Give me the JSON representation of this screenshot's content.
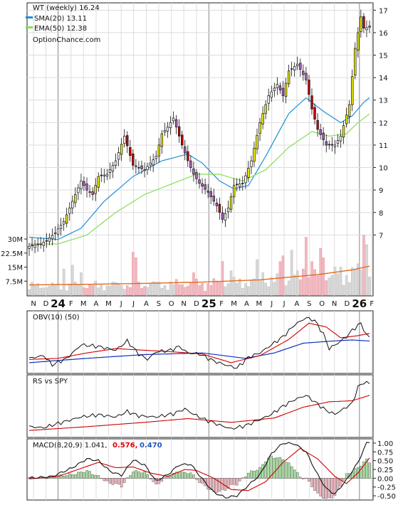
{
  "chart_data": [
    {
      "type": "candlestick",
      "panel": "price",
      "title": "WT (weekly) 16.24",
      "watermark": "OptionChance.com",
      "legend": [
        {
          "label": "SMA(20) 13.11",
          "color": "#1e90d8"
        },
        {
          "label": "EMA(50) 12.38",
          "color": "#88dd55"
        }
      ],
      "y_ticks": [
        7,
        8,
        9,
        10,
        11,
        12,
        13,
        14,
        15,
        16,
        17
      ],
      "ylim": [
        6.6,
        17.2
      ],
      "grid": true,
      "x_ticks": [
        {
          "label": "N",
          "w": 1.5
        },
        {
          "label": "D",
          "w": 5.8
        },
        {
          "label": "24",
          "w": 10,
          "year": true
        },
        {
          "label": "F",
          "w": 14.5
        },
        {
          "label": "M",
          "w": 18.8
        },
        {
          "label": "A",
          "w": 23.2
        },
        {
          "label": "M",
          "w": 27.5
        },
        {
          "label": "J",
          "w": 31.9
        },
        {
          "label": "J",
          "w": 36.2
        },
        {
          "label": "A",
          "w": 40.6
        },
        {
          "label": "S",
          "w": 44.9
        },
        {
          "label": "O",
          "w": 49.3
        },
        {
          "label": "N",
          "w": 53.6
        },
        {
          "label": "D",
          "w": 58
        },
        {
          "label": "25",
          "w": 62.3,
          "year": true
        },
        {
          "label": "F",
          "w": 66.7
        },
        {
          "label": "M",
          "w": 71
        },
        {
          "label": "A",
          "w": 75.4
        },
        {
          "label": "M",
          "w": 79.7
        },
        {
          "label": "J",
          "w": 84.1
        },
        {
          "label": "J",
          "w": 88.4
        },
        {
          "label": "A",
          "w": 92.8
        },
        {
          "label": "S",
          "w": 97.1
        },
        {
          "label": "O",
          "w": 101.5
        },
        {
          "label": "N",
          "w": 105.8
        },
        {
          "label": "D",
          "w": 110.2
        },
        {
          "label": "26",
          "w": 114.5,
          "year": true
        },
        {
          "label": "F",
          "w": 118.8
        }
      ],
      "close_keypoints": [
        [
          0,
          6.5
        ],
        [
          4,
          6.6
        ],
        [
          6,
          6.75
        ],
        [
          9,
          7.1
        ],
        [
          12,
          7.6
        ],
        [
          15,
          8.5
        ],
        [
          18,
          9.4
        ],
        [
          20,
          9.0
        ],
        [
          22,
          8.8
        ],
        [
          24,
          9.6
        ],
        [
          27,
          9.7
        ],
        [
          30,
          10.3
        ],
        [
          33,
          11.4
        ],
        [
          36,
          10.1
        ],
        [
          38,
          10.0
        ],
        [
          40,
          9.9
        ],
        [
          42,
          10.2
        ],
        [
          44,
          10.5
        ],
        [
          46,
          11.5
        ],
        [
          48,
          11.8
        ],
        [
          50,
          12.2
        ],
        [
          53,
          11.0
        ],
        [
          55,
          10.3
        ],
        [
          57,
          9.7
        ],
        [
          59,
          9.3
        ],
        [
          62,
          8.9
        ],
        [
          65,
          8.3
        ],
        [
          67,
          7.7
        ],
        [
          69,
          8.2
        ],
        [
          71,
          9.2
        ],
        [
          74,
          9.3
        ],
        [
          77,
          10.3
        ],
        [
          80,
          12.0
        ],
        [
          83,
          13.2
        ],
        [
          86,
          13.7
        ],
        [
          88,
          13.2
        ],
        [
          90,
          14.3
        ],
        [
          93,
          14.6
        ],
        [
          96,
          13.9
        ],
        [
          98,
          12.6
        ],
        [
          100,
          11.7
        ],
        [
          103,
          11.0
        ],
        [
          106,
          11.0
        ],
        [
          108,
          11.4
        ],
        [
          111,
          12.8
        ],
        [
          113,
          15.3
        ],
        [
          115,
          16.7
        ],
        [
          116,
          16.2
        ],
        [
          118,
          16.24
        ]
      ],
      "sma_keypoints": [
        [
          0,
          6.9
        ],
        [
          10,
          6.8
        ],
        [
          18,
          7.3
        ],
        [
          26,
          8.5
        ],
        [
          36,
          9.6
        ],
        [
          46,
          10.3
        ],
        [
          55,
          10.6
        ],
        [
          60,
          10.2
        ],
        [
          66,
          9.4
        ],
        [
          71,
          9.05
        ],
        [
          76,
          9.2
        ],
        [
          82,
          10.5
        ],
        [
          90,
          12.4
        ],
        [
          96,
          13.1
        ],
        [
          102,
          12.5
        ],
        [
          108,
          12.0
        ],
        [
          112,
          12.3
        ],
        [
          116,
          12.9
        ],
        [
          118,
          13.11
        ]
      ],
      "ema_keypoints": [
        [
          0,
          6.6
        ],
        [
          10,
          6.6
        ],
        [
          20,
          7.0
        ],
        [
          30,
          8.0
        ],
        [
          40,
          8.8
        ],
        [
          50,
          9.3
        ],
        [
          58,
          9.7
        ],
        [
          66,
          9.7
        ],
        [
          74,
          9.4
        ],
        [
          82,
          9.9
        ],
        [
          90,
          10.9
        ],
        [
          98,
          11.6
        ],
        [
          104,
          11.4
        ],
        [
          110,
          11.5
        ],
        [
          114,
          12.0
        ],
        [
          118,
          12.38
        ]
      ],
      "volume": {
        "y_ticks": [
          "7.5M",
          "15M",
          "22.5M",
          "30M"
        ],
        "tick_values": [
          7.5,
          15,
          22.5,
          30
        ],
        "vmax": 38,
        "avg_keypoints": [
          [
            0,
            5.5
          ],
          [
            20,
            5.8
          ],
          [
            40,
            6.3
          ],
          [
            60,
            7.0
          ],
          [
            80,
            8.2
          ],
          [
            100,
            11.0
          ],
          [
            112,
            13.5
          ],
          [
            118,
            15.5
          ]
        ],
        "spikes": [
          [
            12,
            14
          ],
          [
            15,
            16
          ],
          [
            18,
            12
          ],
          [
            36,
            23
          ],
          [
            37,
            20
          ],
          [
            57,
            12
          ],
          [
            67,
            18
          ],
          [
            70,
            13
          ],
          [
            79,
            19
          ],
          [
            81,
            12
          ],
          [
            87,
            18
          ],
          [
            88,
            21
          ],
          [
            91,
            24
          ],
          [
            93,
            13
          ],
          [
            95,
            14
          ],
          [
            96,
            31
          ],
          [
            98,
            18
          ],
          [
            101,
            25
          ],
          [
            102,
            20
          ],
          [
            108,
            15
          ],
          [
            116,
            32
          ],
          [
            117,
            27
          ]
        ]
      }
    },
    {
      "type": "line",
      "panel": "obv",
      "legend": [
        {
          "label": "OBV(10) (50)",
          "color": "#111111"
        }
      ],
      "line_keypoints": [
        [
          0,
          0.2
        ],
        [
          5,
          0.25
        ],
        [
          8,
          0.08
        ],
        [
          13,
          0.2
        ],
        [
          18,
          0.45
        ],
        [
          24,
          0.42
        ],
        [
          30,
          0.35
        ],
        [
          34,
          0.52
        ],
        [
          38,
          0.28
        ],
        [
          41,
          0.18
        ],
        [
          44,
          0.32
        ],
        [
          49,
          0.35
        ],
        [
          52,
          0.42
        ],
        [
          55,
          0.3
        ],
        [
          59,
          0.28
        ],
        [
          64,
          0.15
        ],
        [
          68,
          0.08
        ],
        [
          72,
          0.02
        ],
        [
          76,
          0.22
        ],
        [
          80,
          0.3
        ],
        [
          84,
          0.45
        ],
        [
          88,
          0.6
        ],
        [
          92,
          0.82
        ],
        [
          96,
          0.95
        ],
        [
          99,
          0.9
        ],
        [
          102,
          0.65
        ],
        [
          104,
          0.38
        ],
        [
          107,
          0.48
        ],
        [
          110,
          0.6
        ],
        [
          112,
          0.72
        ],
        [
          115,
          0.85
        ],
        [
          117,
          0.62
        ],
        [
          118,
          0.6
        ]
      ],
      "ma_red_keypoints": [
        [
          0,
          0.18
        ],
        [
          10,
          0.2
        ],
        [
          20,
          0.3
        ],
        [
          30,
          0.38
        ],
        [
          40,
          0.35
        ],
        [
          50,
          0.32
        ],
        [
          60,
          0.28
        ],
        [
          70,
          0.12
        ],
        [
          80,
          0.25
        ],
        [
          90,
          0.55
        ],
        [
          97,
          0.85
        ],
        [
          103,
          0.78
        ],
        [
          108,
          0.58
        ],
        [
          114,
          0.62
        ],
        [
          118,
          0.66
        ]
      ],
      "ma_blue_keypoints": [
        [
          0,
          0.12
        ],
        [
          20,
          0.2
        ],
        [
          40,
          0.27
        ],
        [
          60,
          0.3
        ],
        [
          75,
          0.2
        ],
        [
          85,
          0.3
        ],
        [
          95,
          0.48
        ],
        [
          105,
          0.52
        ],
        [
          112,
          0.54
        ],
        [
          118,
          0.52
        ]
      ]
    },
    {
      "type": "line",
      "panel": "rs",
      "legend": [
        {
          "label": "RS vs SPY",
          "color": "#111111"
        }
      ],
      "line_keypoints": [
        [
          0,
          0.12
        ],
        [
          5,
          0.1
        ],
        [
          10,
          0.18
        ],
        [
          18,
          0.3
        ],
        [
          24,
          0.34
        ],
        [
          30,
          0.3
        ],
        [
          34,
          0.4
        ],
        [
          38,
          0.32
        ],
        [
          44,
          0.3
        ],
        [
          50,
          0.36
        ],
        [
          54,
          0.45
        ],
        [
          57,
          0.35
        ],
        [
          61,
          0.25
        ],
        [
          66,
          0.15
        ],
        [
          70,
          0.08
        ],
        [
          75,
          0.14
        ],
        [
          80,
          0.25
        ],
        [
          84,
          0.35
        ],
        [
          88,
          0.5
        ],
        [
          92,
          0.62
        ],
        [
          96,
          0.7
        ],
        [
          99,
          0.58
        ],
        [
          103,
          0.42
        ],
        [
          106,
          0.35
        ],
        [
          109,
          0.45
        ],
        [
          112,
          0.55
        ],
        [
          114,
          0.85
        ],
        [
          116,
          0.94
        ],
        [
          118,
          0.92
        ]
      ],
      "ma_red_keypoints": [
        [
          0,
          0.05
        ],
        [
          20,
          0.12
        ],
        [
          40,
          0.2
        ],
        [
          55,
          0.27
        ],
        [
          70,
          0.2
        ],
        [
          85,
          0.28
        ],
        [
          95,
          0.48
        ],
        [
          104,
          0.58
        ],
        [
          112,
          0.6
        ],
        [
          118,
          0.7
        ]
      ]
    },
    {
      "type": "macd",
      "panel": "macd",
      "legend_prefix": "MACD(8,20,9) 1.041,",
      "signal_value_label": "0.576,",
      "hist_value_label": "0.470",
      "y_ticks": [
        "1.00",
        "0.75",
        "0.50",
        "0.25",
        "0.00",
        "-0.25",
        "-0.50"
      ],
      "tick_values": [
        1.0,
        0.75,
        0.5,
        0.25,
        0.0,
        -0.25,
        -0.5
      ],
      "ylim": [
        -0.62,
        1.12
      ],
      "macd_keypoints": [
        [
          0,
          0.0
        ],
        [
          8,
          0.05
        ],
        [
          15,
          0.3
        ],
        [
          20,
          0.55
        ],
        [
          24,
          0.5
        ],
        [
          28,
          0.2
        ],
        [
          32,
          0.08
        ],
        [
          36,
          0.52
        ],
        [
          40,
          0.38
        ],
        [
          44,
          -0.08
        ],
        [
          48,
          0.1
        ],
        [
          52,
          0.38
        ],
        [
          56,
          0.4
        ],
        [
          60,
          -0.02
        ],
        [
          64,
          -0.4
        ],
        [
          68,
          -0.55
        ],
        [
          72,
          -0.5
        ],
        [
          76,
          -0.2
        ],
        [
          80,
          0.1
        ],
        [
          84,
          0.7
        ],
        [
          88,
          1.0
        ],
        [
          92,
          0.98
        ],
        [
          96,
          0.75
        ],
        [
          100,
          0.1
        ],
        [
          103,
          -0.3
        ],
        [
          106,
          -0.45
        ],
        [
          110,
          -0.05
        ],
        [
          114,
          0.45
        ],
        [
          117,
          1.0
        ],
        [
          118,
          1.041
        ]
      ],
      "signal_keypoints": [
        [
          0,
          -0.02
        ],
        [
          10,
          0.05
        ],
        [
          18,
          0.28
        ],
        [
          24,
          0.45
        ],
        [
          30,
          0.3
        ],
        [
          36,
          0.32
        ],
        [
          42,
          0.15
        ],
        [
          48,
          0.05
        ],
        [
          54,
          0.25
        ],
        [
          58,
          0.22
        ],
        [
          64,
          0.0
        ],
        [
          70,
          -0.32
        ],
        [
          76,
          -0.35
        ],
        [
          82,
          -0.1
        ],
        [
          88,
          0.45
        ],
        [
          94,
          0.85
        ],
        [
          100,
          0.55
        ],
        [
          106,
          0.05
        ],
        [
          110,
          -0.15
        ],
        [
          114,
          0.15
        ],
        [
          118,
          0.576
        ]
      ]
    }
  ]
}
